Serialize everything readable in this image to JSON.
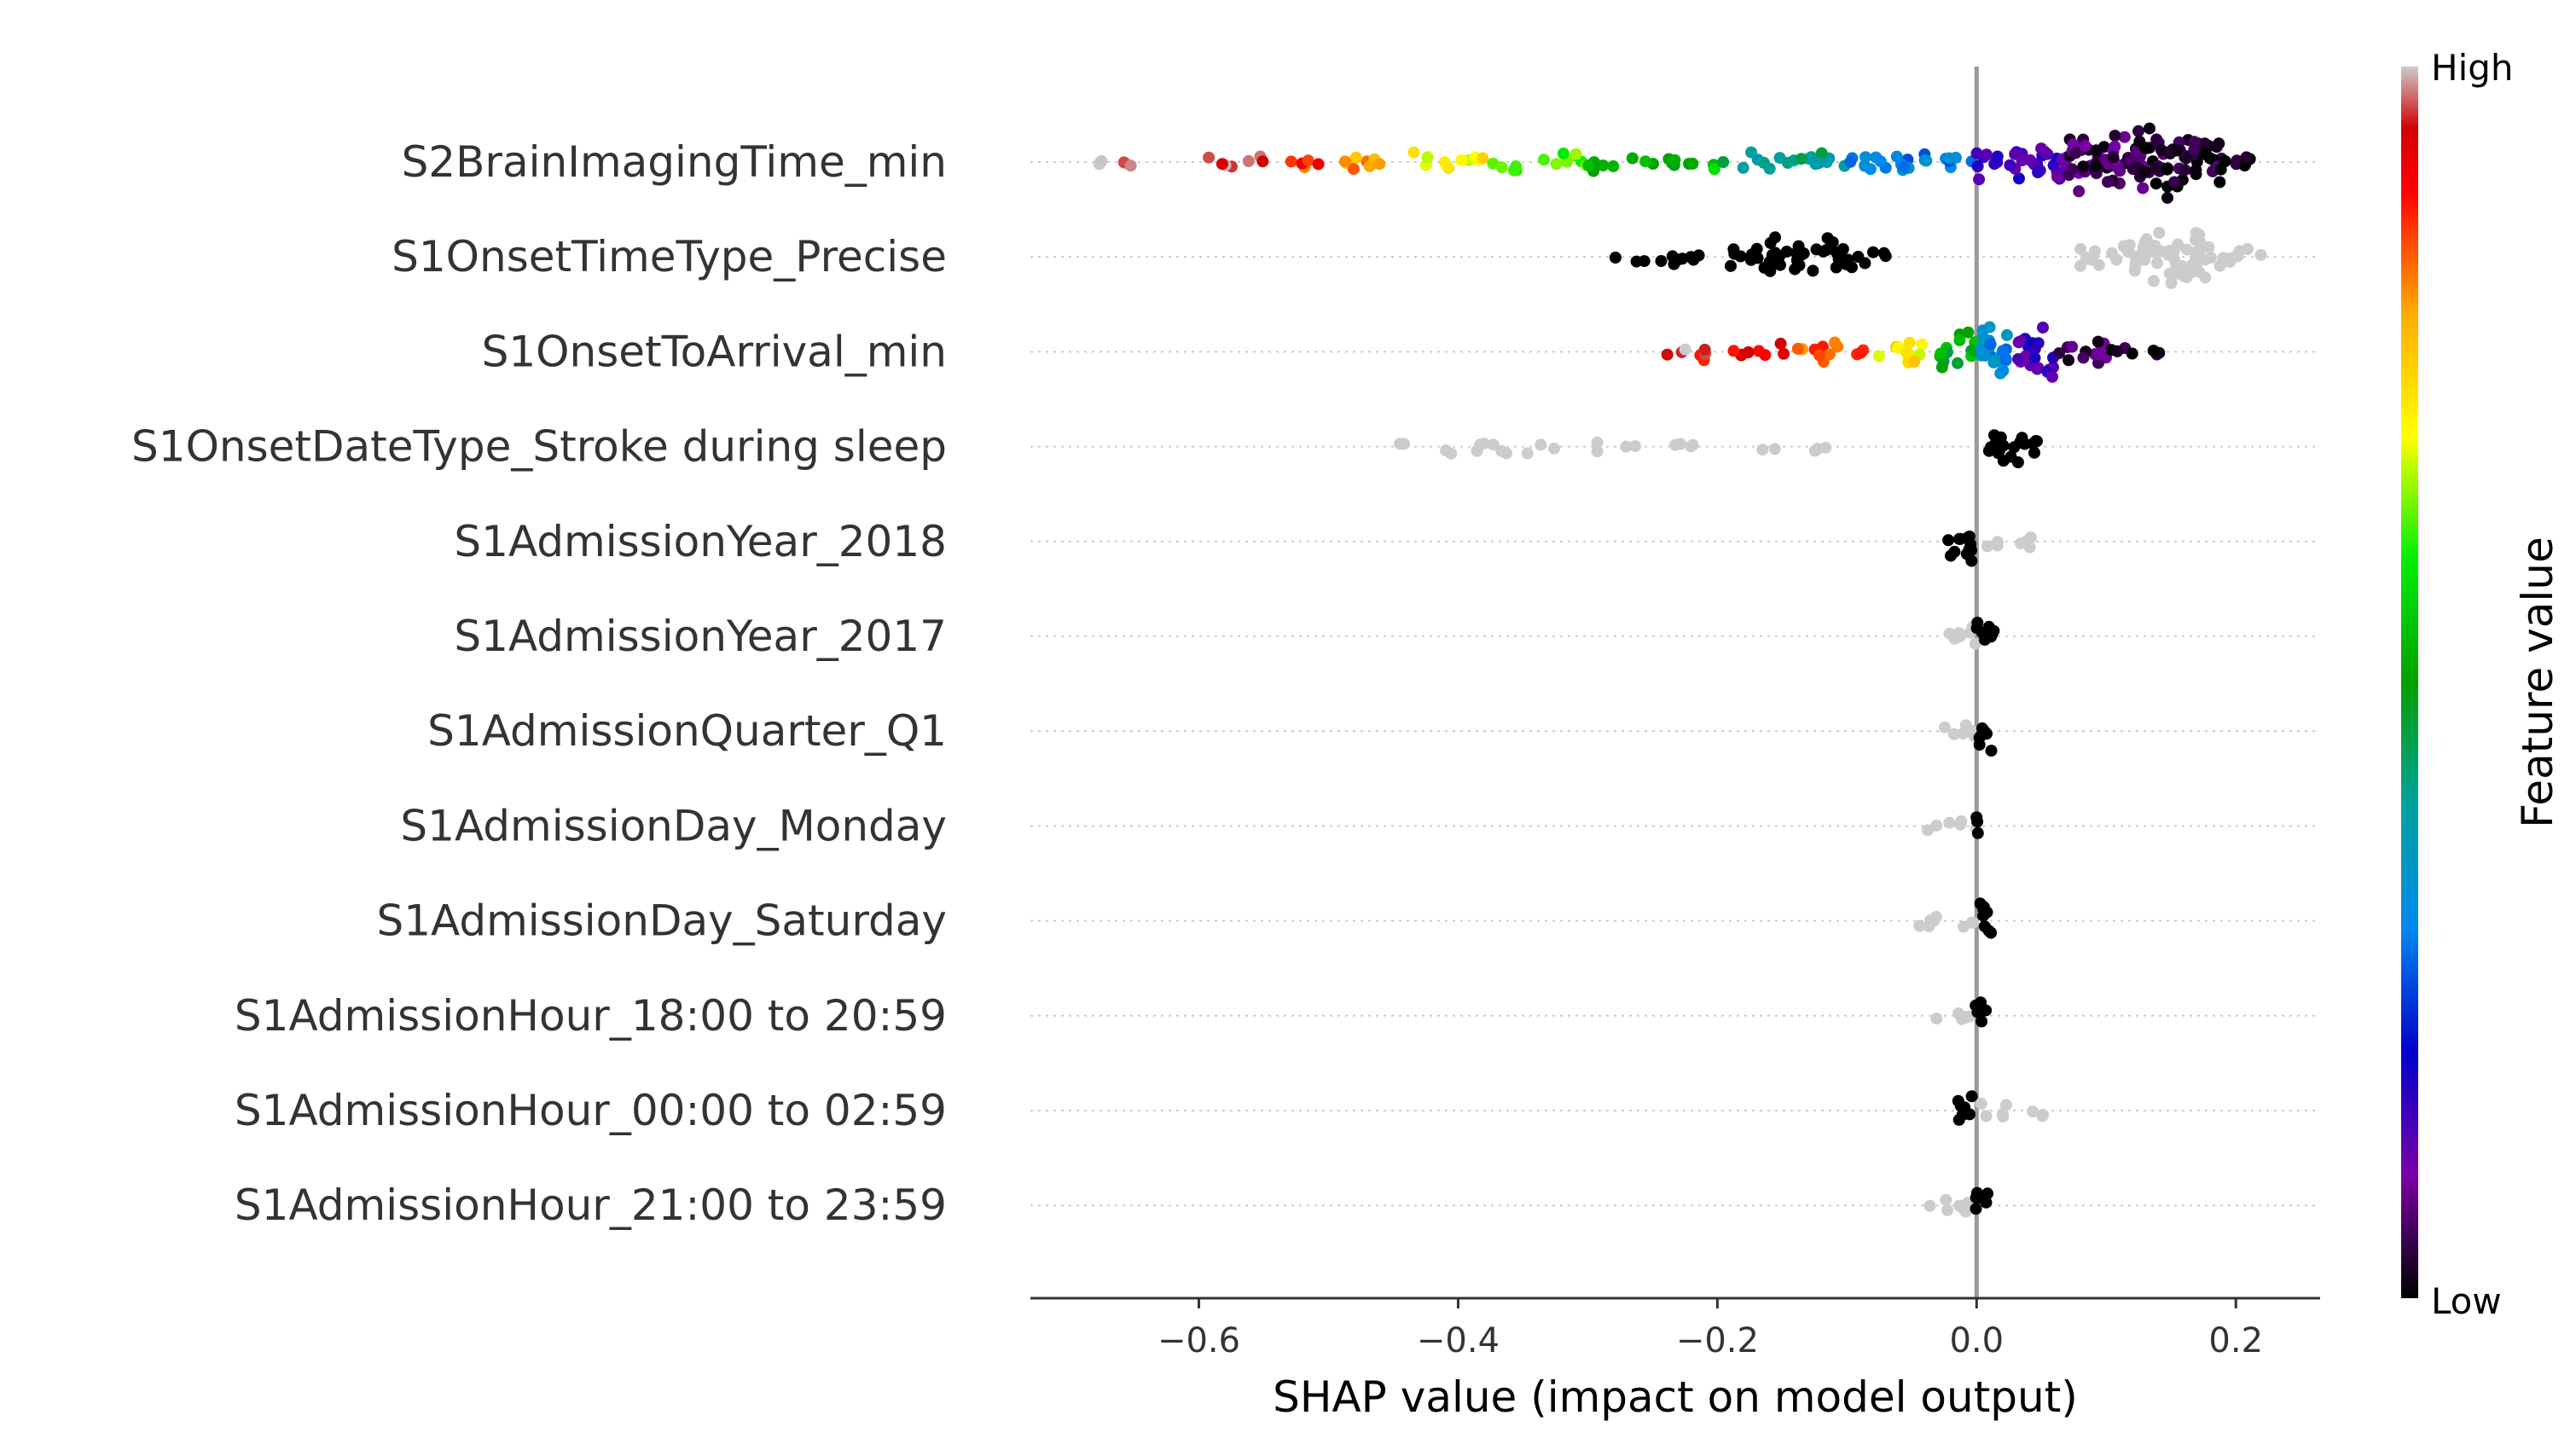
{
  "chart_data": {
    "type": "scatter",
    "subtype": "shap-beeswarm",
    "xlabel": "SHAP value (impact on model output)",
    "xlim": [
      -0.73,
      0.265
    ],
    "xticks": [
      -0.6,
      -0.4,
      -0.2,
      0.0,
      0.2
    ],
    "xtick_labels": [
      "−0.6",
      "−0.4",
      "−0.2",
      "0.0",
      "0.2"
    ],
    "zero_line": 0.0,
    "colorbar": {
      "title": "Feature value",
      "high_label": "High",
      "low_label": "Low",
      "colors": [
        "#000000",
        "#7a00a8",
        "#0000cc",
        "#0088ee",
        "#00a0a0",
        "#00a000",
        "#00ee00",
        "#ffff00",
        "#ffaa00",
        "#ff0000",
        "#d20000",
        "#cccccc"
      ]
    },
    "features": [
      {
        "name": "S2BrainImagingTime_min",
        "pattern": "continuous",
        "segments": [
          [
            -0.69,
            -0.67,
            0.99,
            0.08
          ],
          [
            -0.66,
            -0.64,
            0.99,
            0.12
          ],
          [
            -0.61,
            -0.54,
            0.99,
            0.3
          ],
          [
            -0.54,
            -0.5,
            0.87,
            0.45
          ],
          [
            -0.5,
            -0.44,
            0.8,
            0.5
          ],
          [
            -0.44,
            -0.38,
            0.71,
            0.55
          ],
          [
            -0.38,
            -0.3,
            0.62,
            0.5
          ],
          [
            -0.3,
            -0.2,
            0.53,
            0.5
          ],
          [
            -0.2,
            -0.1,
            0.42,
            0.55
          ],
          [
            -0.1,
            0.0,
            0.3,
            0.7
          ],
          [
            0.0,
            0.07,
            0.14,
            1.6
          ],
          [
            0.07,
            0.13,
            0.06,
            3.2
          ],
          [
            0.13,
            0.19,
            0.02,
            3.0
          ],
          [
            0.19,
            0.215,
            0.01,
            0.8
          ]
        ]
      },
      {
        "name": "S1OnsetTimeType_Precise",
        "pattern": "binary",
        "segments": [
          [
            -0.28,
            -0.2,
            0.0,
            0.45
          ],
          [
            -0.2,
            -0.16,
            0.0,
            0.8
          ],
          [
            -0.16,
            -0.1,
            0.0,
            1.7
          ],
          [
            -0.1,
            -0.07,
            0.0,
            0.7
          ],
          [
            0.08,
            0.12,
            1.0,
            0.9
          ],
          [
            0.12,
            0.18,
            1.0,
            2.6
          ],
          [
            0.18,
            0.225,
            1.0,
            0.8
          ]
        ]
      },
      {
        "name": "S1OnsetToArrival_min",
        "pattern": "continuous",
        "segments": [
          [
            -0.24,
            -0.22,
            0.99,
            0.2
          ],
          [
            -0.22,
            -0.14,
            0.93,
            0.45
          ],
          [
            -0.14,
            -0.08,
            0.85,
            0.6
          ],
          [
            -0.08,
            -0.03,
            0.72,
            0.8
          ],
          [
            -0.03,
            0.0,
            0.5,
            1.4
          ],
          [
            0.0,
            0.03,
            0.32,
            2.3
          ],
          [
            0.03,
            0.06,
            0.14,
            2.6
          ],
          [
            0.06,
            0.1,
            0.05,
            1.0
          ],
          [
            0.1,
            0.145,
            0.01,
            0.45
          ]
        ]
      },
      {
        "name": "S1OnsetDateType_Stroke during sleep",
        "pattern": "binary",
        "segments": [
          [
            -0.45,
            -0.37,
            1.0,
            0.35
          ],
          [
            -0.37,
            -0.28,
            1.0,
            0.25
          ],
          [
            -0.28,
            -0.15,
            1.0,
            0.2
          ],
          [
            -0.125,
            -0.115,
            1.0,
            0.15
          ],
          [
            0.005,
            0.02,
            0.0,
            1.8
          ],
          [
            0.02,
            0.048,
            0.0,
            1.4
          ]
        ]
      },
      {
        "name": "S1AdmissionYear_2018",
        "pattern": "binary",
        "segments": [
          [
            -0.022,
            -0.005,
            0.0,
            1.6
          ],
          [
            -0.005,
            -0.001,
            0.0,
            1.8
          ],
          [
            0.005,
            0.018,
            1.0,
            0.6
          ],
          [
            0.018,
            0.055,
            1.0,
            0.4
          ]
        ]
      },
      {
        "name": "S1AdmissionYear_2017",
        "pattern": "binary",
        "segments": [
          [
            -0.025,
            -0.005,
            1.0,
            0.6
          ],
          [
            -0.005,
            0.0,
            1.0,
            1.2
          ],
          [
            0.0,
            0.01,
            0.0,
            1.8
          ],
          [
            0.01,
            0.022,
            0.0,
            0.8
          ]
        ]
      },
      {
        "name": "S1AdmissionQuarter_Q1",
        "pattern": "binary",
        "segments": [
          [
            -0.025,
            -0.01,
            1.0,
            0.45
          ],
          [
            -0.01,
            0.0,
            1.0,
            0.7
          ],
          [
            0.0,
            0.012,
            0.0,
            1.8
          ]
        ]
      },
      {
        "name": "S1AdmissionDay_Monday",
        "pattern": "binary",
        "segments": [
          [
            -0.042,
            -0.015,
            1.0,
            0.35
          ],
          [
            -0.015,
            0.0,
            1.0,
            0.45
          ],
          [
            -0.001,
            0.004,
            0.0,
            2.0
          ]
        ]
      },
      {
        "name": "S1AdmissionDay_Saturday",
        "pattern": "binary",
        "segments": [
          [
            -0.055,
            -0.015,
            1.0,
            0.35
          ],
          [
            -0.015,
            0.0,
            1.0,
            0.55
          ],
          [
            -0.001,
            0.012,
            0.0,
            1.8
          ]
        ]
      },
      {
        "name": "S1AdmissionHour_18:00 to 20:59",
        "pattern": "binary",
        "segments": [
          [
            -0.038,
            -0.01,
            1.0,
            0.35
          ],
          [
            -0.01,
            0.0,
            1.0,
            0.5
          ],
          [
            -0.001,
            0.008,
            0.0,
            2.0
          ]
        ]
      },
      {
        "name": "S1AdmissionHour_00:00 to 02:59",
        "pattern": "binary",
        "segments": [
          [
            -0.015,
            -0.001,
            0.0,
            1.6
          ],
          [
            0.0,
            0.04,
            1.0,
            0.4
          ],
          [
            0.04,
            0.053,
            1.0,
            0.35
          ]
        ]
      },
      {
        "name": "S1AdmissionHour_21:00 to 23:59",
        "pattern": "binary",
        "segments": [
          [
            -0.04,
            -0.01,
            1.0,
            0.4
          ],
          [
            -0.01,
            0.0,
            1.0,
            0.55
          ],
          [
            -0.002,
            0.009,
            0.0,
            2.0
          ]
        ]
      }
    ]
  }
}
